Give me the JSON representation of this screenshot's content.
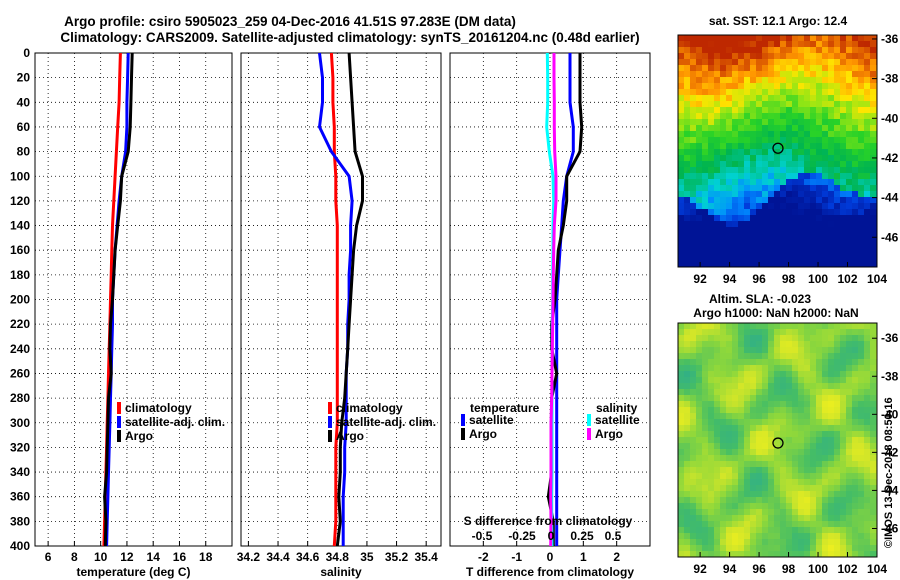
{
  "header": {
    "line1": "Argo profile: csiro 5905023_259 04-Dec-2016 41.51S 97.283E (DM data)",
    "line2": "Climatology: CARS2009. Satellite-adjusted climatology: synTS_20161204.nc (0.48d earlier)"
  },
  "colors": {
    "climatology": "#ff0000",
    "satellite": "#0000ff",
    "argo": "#000000",
    "sal_satellite": "#00ffff",
    "sal_argo": "#ff00ff"
  },
  "depth_ticks": [
    0,
    20,
    40,
    60,
    80,
    100,
    120,
    140,
    160,
    180,
    200,
    220,
    240,
    260,
    280,
    300,
    320,
    340,
    360,
    380,
    400
  ],
  "chart_data": [
    {
      "type": "line",
      "title": "",
      "xlabel": "temperature (deg C)",
      "ylabel": "depth",
      "xlim": [
        5,
        20
      ],
      "ylim": [
        400,
        0
      ],
      "xticks": [
        6,
        8,
        10,
        12,
        14,
        16,
        18
      ],
      "legend": [
        "climatology",
        "satellite-adj. clim.",
        "Argo"
      ],
      "series": [
        {
          "name": "climatology",
          "color": "#ff0000",
          "depth": [
            0,
            20,
            40,
            60,
            80,
            100,
            120,
            140,
            160,
            180,
            200,
            220,
            240,
            260,
            280,
            300,
            320,
            340,
            360,
            380,
            400
          ],
          "values": [
            11.5,
            11.45,
            11.4,
            11.3,
            11.2,
            11.1,
            11.0,
            10.9,
            10.85,
            10.8,
            10.75,
            10.7,
            10.65,
            10.6,
            10.55,
            10.5,
            10.45,
            10.4,
            10.35,
            10.3,
            10.25
          ]
        },
        {
          "name": "satellite-adj. clim.",
          "color": "#0000ff",
          "depth": [
            0,
            20,
            40,
            60,
            80,
            100,
            120,
            140,
            160,
            180,
            200,
            220,
            240,
            260,
            280,
            300,
            320,
            340,
            360,
            380,
            400
          ],
          "values": [
            12.1,
            12.05,
            12.0,
            12.0,
            11.9,
            11.6,
            11.4,
            11.25,
            11.1,
            11.0,
            10.9,
            10.9,
            10.85,
            10.8,
            10.75,
            10.7,
            10.65,
            10.6,
            10.55,
            10.5,
            10.45
          ]
        },
        {
          "name": "Argo",
          "color": "#000000",
          "depth": [
            0,
            20,
            40,
            60,
            80,
            100,
            120,
            140,
            160,
            180,
            200,
            220,
            240,
            260,
            280,
            300,
            320,
            340,
            360,
            380,
            400
          ],
          "values": [
            12.4,
            12.35,
            12.3,
            12.25,
            12.1,
            11.6,
            11.5,
            11.3,
            11.1,
            11.0,
            10.9,
            10.75,
            10.7,
            10.8,
            10.6,
            10.55,
            10.5,
            10.45,
            10.3,
            10.4,
            10.35
          ]
        }
      ]
    },
    {
      "type": "line",
      "title": "",
      "xlabel": "salinity",
      "ylabel": "depth",
      "xlim": [
        34.15,
        35.5
      ],
      "ylim": [
        400,
        0
      ],
      "xticks": [
        34.2,
        34.4,
        34.6,
        34.8,
        35,
        35.2,
        35.4
      ],
      "legend": [
        "climatology",
        "satellite-adj. clim.",
        "Argo"
      ],
      "series": [
        {
          "name": "climatology",
          "color": "#ff0000",
          "depth": [
            0,
            20,
            40,
            60,
            80,
            100,
            120,
            140,
            160,
            180,
            200,
            220,
            240,
            260,
            280,
            300,
            320,
            340,
            360,
            380,
            400
          ],
          "values": [
            34.76,
            34.77,
            34.77,
            34.78,
            34.78,
            34.79,
            34.79,
            34.8,
            34.8,
            34.8,
            34.8,
            34.8,
            34.8,
            34.8,
            34.8,
            34.8,
            34.79,
            34.79,
            34.79,
            34.79,
            34.78
          ]
        },
        {
          "name": "satellite-adj. clim.",
          "color": "#0000ff",
          "depth": [
            0,
            20,
            40,
            60,
            80,
            100,
            120,
            140,
            160,
            180,
            200,
            220,
            240,
            260,
            280,
            300,
            320,
            340,
            360,
            380,
            400
          ],
          "values": [
            34.68,
            34.7,
            34.7,
            34.68,
            34.76,
            34.88,
            34.9,
            34.89,
            34.89,
            34.88,
            34.88,
            34.87,
            34.87,
            34.86,
            34.86,
            34.86,
            34.85,
            34.85,
            34.84,
            34.84,
            34.84
          ]
        },
        {
          "name": "Argo",
          "color": "#000000",
          "depth": [
            0,
            20,
            40,
            60,
            80,
            100,
            120,
            140,
            160,
            180,
            200,
            220,
            240,
            260,
            280,
            300,
            320,
            340,
            360,
            380,
            400
          ],
          "values": [
            34.88,
            34.89,
            34.9,
            34.91,
            34.92,
            34.97,
            34.97,
            34.93,
            34.91,
            34.9,
            34.89,
            34.88,
            34.87,
            34.86,
            34.85,
            34.83,
            34.82,
            34.82,
            34.81,
            34.82,
            34.8
          ]
        }
      ]
    },
    {
      "type": "line",
      "title": "",
      "xlabel": "T difference from climatology",
      "xlabel2": "S difference from climatology",
      "ylabel": "depth",
      "xlim": [
        -3,
        3
      ],
      "ylim": [
        400,
        0
      ],
      "xticks": [
        -2,
        -1,
        0,
        1,
        2
      ],
      "xticks2": [
        "-0.5",
        "-0.25",
        "0",
        "0.25",
        "0.5"
      ],
      "legend_t_title": "temperature",
      "legend_s_title": "salinity",
      "legend_t": [
        "satellite",
        "Argo"
      ],
      "legend_s": [
        "satellite",
        "Argo"
      ],
      "series": [
        {
          "name": "T satellite",
          "color": "#0000ff",
          "depth": [
            0,
            20,
            40,
            60,
            80,
            100,
            120,
            140,
            160,
            180,
            200,
            220,
            240,
            260,
            280,
            300,
            320,
            340,
            360,
            380,
            400
          ],
          "values": [
            0.6,
            0.6,
            0.6,
            0.7,
            0.7,
            0.5,
            0.4,
            0.35,
            0.3,
            0.25,
            0.2,
            0.2,
            0.2,
            0.2,
            0.2,
            0.2,
            0.2,
            0.2,
            0.2,
            0.2,
            0.2
          ]
        },
        {
          "name": "T Argo",
          "color": "#000000",
          "depth": [
            0,
            20,
            40,
            60,
            80,
            100,
            120,
            140,
            160,
            180,
            200,
            220,
            240,
            260,
            280,
            300,
            320,
            340,
            360,
            380,
            400
          ],
          "values": [
            0.9,
            0.9,
            0.9,
            0.95,
            0.9,
            0.5,
            0.5,
            0.4,
            0.25,
            0.2,
            0.15,
            0.05,
            0.05,
            0.2,
            0.05,
            0.05,
            0.05,
            0.05,
            -0.05,
            0.1,
            0.1
          ]
        },
        {
          "name": "S satellite",
          "color": "#00ffff",
          "depth": [
            0,
            20,
            40,
            60,
            80,
            100,
            120,
            140,
            160,
            180,
            200,
            220,
            240,
            260,
            280,
            300,
            320,
            340,
            360,
            380,
            400
          ],
          "values": [
            -0.08,
            -0.07,
            -0.07,
            -0.1,
            -0.02,
            0.09,
            0.11,
            0.09,
            0.09,
            0.08,
            0.08,
            0.07,
            0.07,
            0.06,
            0.06,
            0.06,
            0.06,
            0.06,
            0.05,
            0.05,
            0.06
          ]
        },
        {
          "name": "S Argo",
          "color": "#ff00ff",
          "depth": [
            0,
            20,
            40,
            60,
            80,
            100,
            120,
            140,
            160,
            180,
            200,
            220,
            240,
            260,
            280,
            300,
            320,
            340,
            360,
            380,
            400
          ],
          "values": [
            0.12,
            0.12,
            0.13,
            0.13,
            0.14,
            0.18,
            0.18,
            0.13,
            0.11,
            0.1,
            0.09,
            0.08,
            0.07,
            0.06,
            0.05,
            0.03,
            0.03,
            0.03,
            0.02,
            0.03,
            0.02
          ]
        }
      ]
    },
    {
      "type": "heatmap",
      "title": "sat. SST: 12.1 Argo: 12.4",
      "xlabel": "",
      "ylabel": "",
      "xlim": [
        90.5,
        104
      ],
      "ylim": [
        -47.5,
        -35.8
      ],
      "xticks": [
        92,
        94,
        96,
        98,
        100,
        102,
        104
      ],
      "yticks": [
        -36,
        -38,
        -40,
        -42,
        -44,
        -46
      ],
      "marker": {
        "lon": 97.283,
        "lat": -41.51
      }
    },
    {
      "type": "heatmap",
      "title": "Altim. SLA: -0.023",
      "subtitle": "Argo h1000: NaN h2000: NaN",
      "xlabel": "",
      "ylabel": "",
      "xlim": [
        90.5,
        104
      ],
      "ylim": [
        -47.5,
        -35.2
      ],
      "xticks": [
        92,
        94,
        96,
        98,
        100,
        102,
        104
      ],
      "yticks": [
        -36,
        -38,
        -40,
        -42,
        -44,
        -46
      ],
      "marker": {
        "lon": 97.283,
        "lat": -41.51
      }
    }
  ],
  "watermark": "©IMOS 13-Dec-2018 08:50:16"
}
